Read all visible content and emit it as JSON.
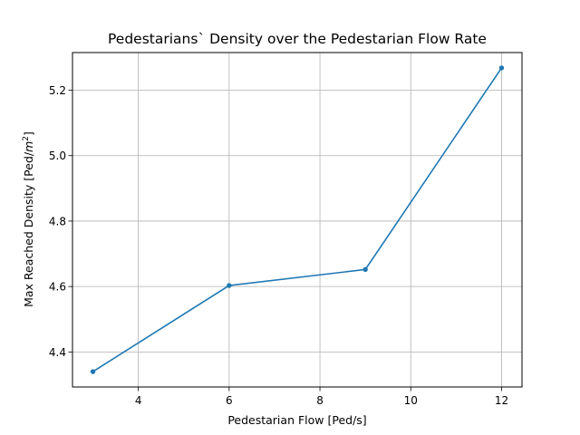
{
  "chart_data": {
    "type": "line",
    "title": "Pedestarians` Density over the Pedestarian Flow Rate",
    "xlabel": "Pedestarian Flow [Ped/s]",
    "ylabel_main": "Max Reached Density [Ped/",
    "ylabel_unit": "m",
    "ylabel_exp": "2",
    "ylabel_end": "]",
    "x": [
      3,
      6,
      9,
      12
    ],
    "series": [
      {
        "values": [
          4.34,
          4.603,
          4.652,
          5.268
        ]
      }
    ],
    "xlim": [
      2.55,
      12.45
    ],
    "ylim": [
      4.293,
      5.315
    ],
    "xticks": [
      4,
      6,
      8,
      10,
      12
    ],
    "yticks": [
      4.4,
      4.6,
      4.8,
      5.0,
      5.2
    ],
    "xtick_labels": [
      "4",
      "6",
      "8",
      "10",
      "12"
    ],
    "ytick_labels": [
      "4.4",
      "4.6",
      "4.8",
      "5.0",
      "5.2"
    ],
    "grid": true,
    "line_color": "#1f77b4"
  }
}
